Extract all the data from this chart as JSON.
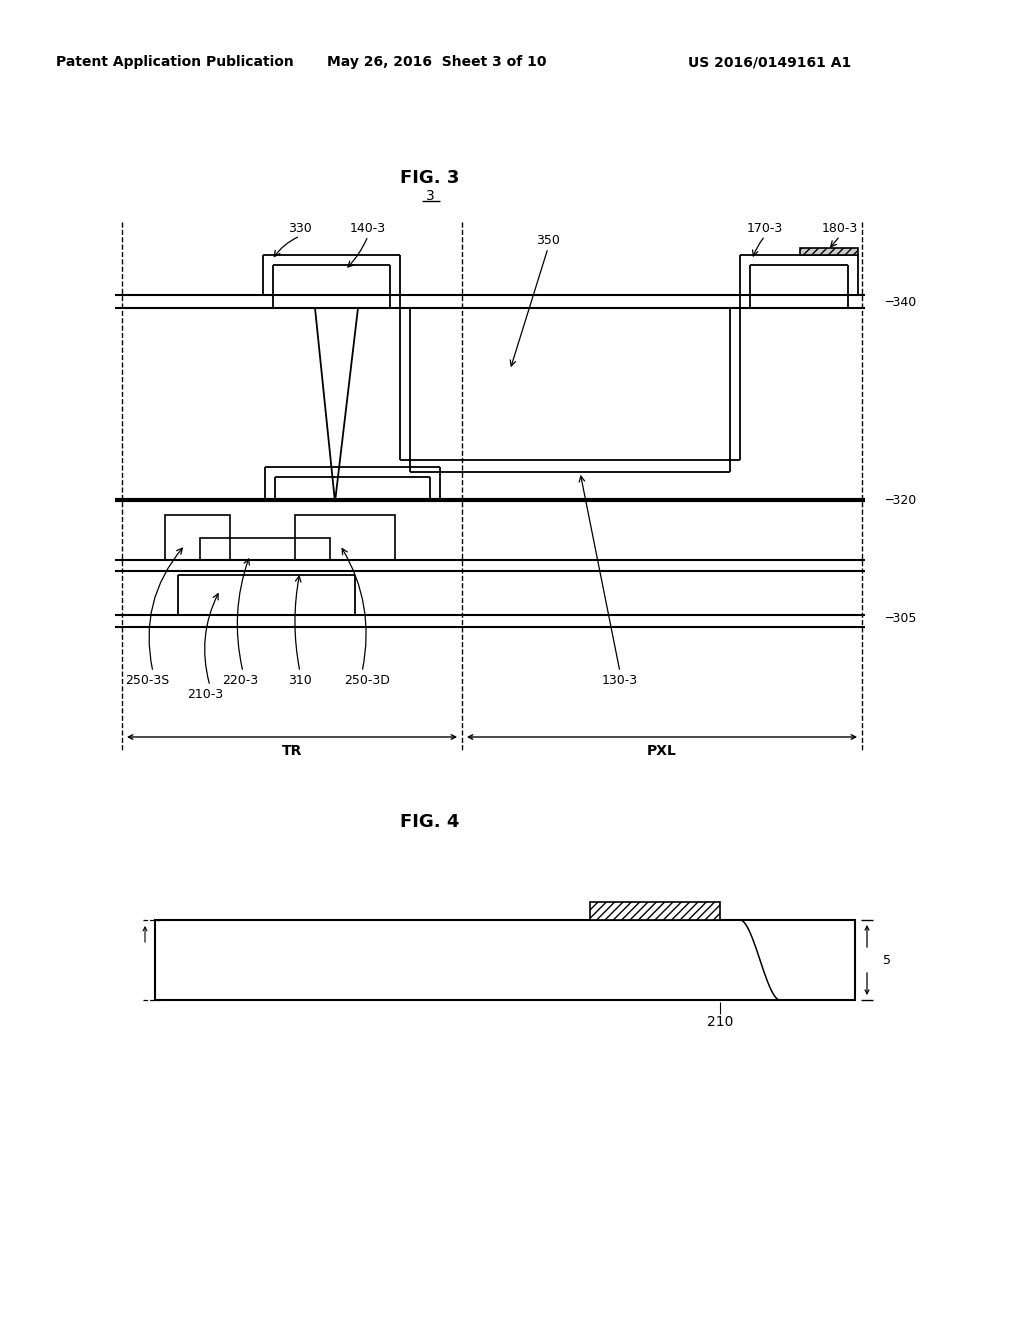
{
  "header_left": "Patent Application Publication",
  "header_mid": "May 26, 2016  Sheet 3 of 10",
  "header_right": "US 2016/0149161 A1",
  "fig3_title": "FIG. 3",
  "fig3_label": "3",
  "fig4_title": "FIG. 4",
  "background": "#ffffff",
  "line_color": "#000000"
}
